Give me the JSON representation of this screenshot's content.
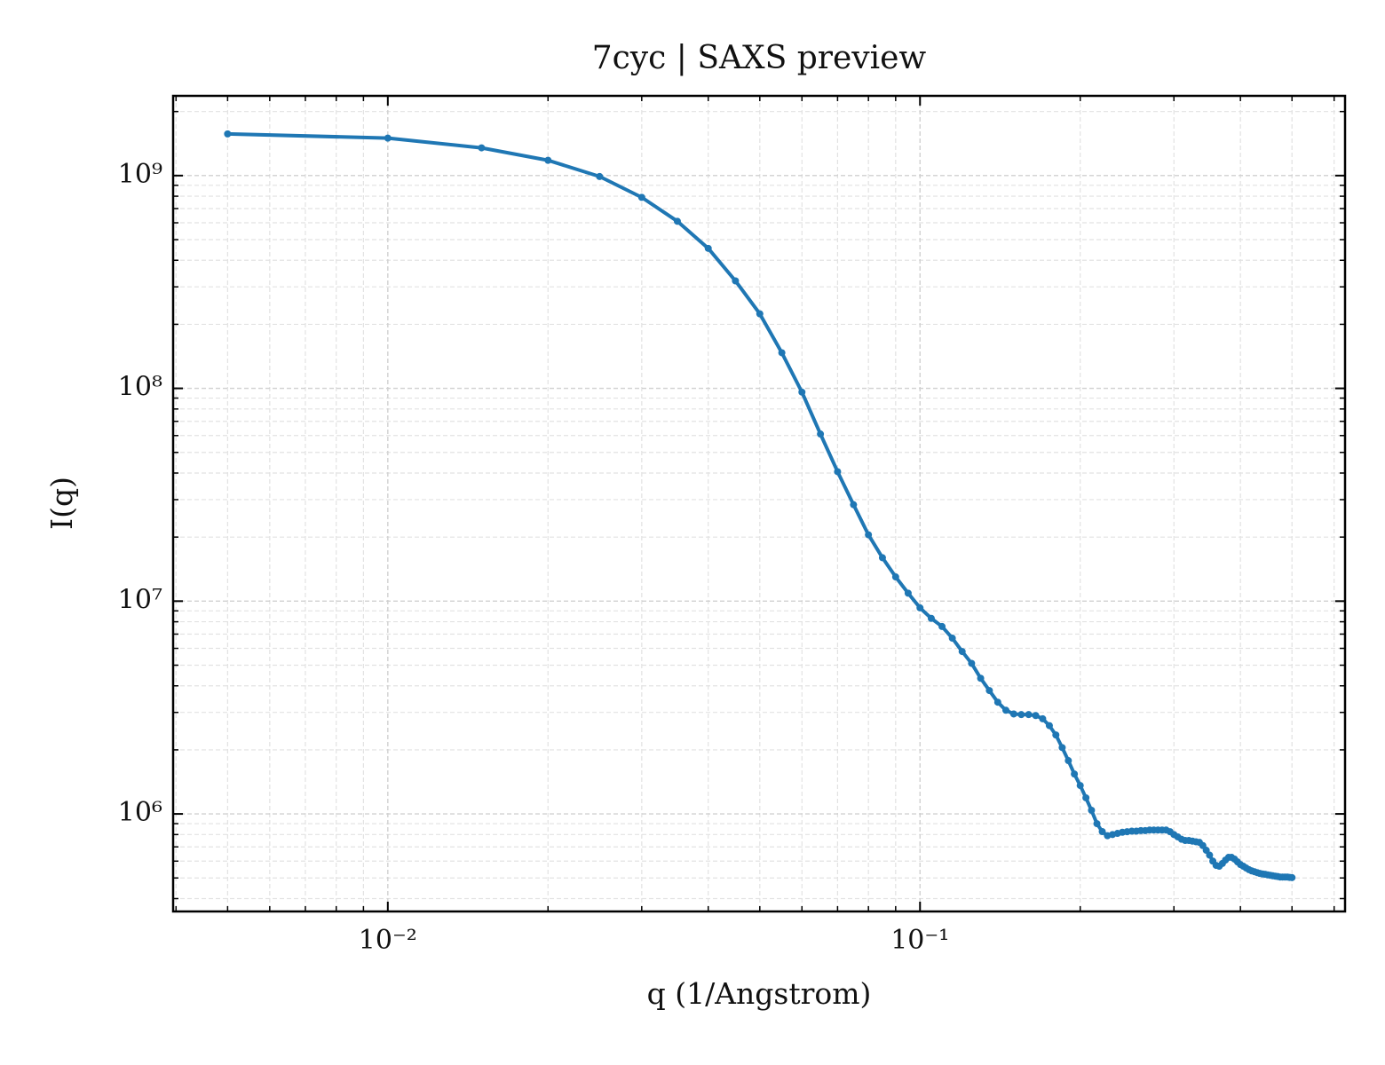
{
  "chart_data": {
    "type": "line",
    "title": "7cyc | SAXS preview",
    "x_label": "q (1/Angstrom)",
    "y_label": "I(q)",
    "x_scale": "log",
    "y_scale": "log",
    "grid": true,
    "minor_grid": true,
    "xlim": [
      0.00395,
      0.629
    ],
    "ylim": [
      348000,
      2370000000
    ],
    "xticks": [
      {
        "value": 0.01,
        "label": "10⁻²"
      },
      {
        "value": 0.1,
        "label": "10⁻¹"
      }
    ],
    "yticks": [
      {
        "value": 1000000,
        "label": "10⁶"
      },
      {
        "value": 10000000,
        "label": "10⁷"
      },
      {
        "value": 100000000,
        "label": "10⁸"
      },
      {
        "value": 1000000000,
        "label": "10⁹"
      }
    ],
    "xminorticks": [
      0.004,
      0.005,
      0.006,
      0.007,
      0.008,
      0.009,
      0.02,
      0.03,
      0.04,
      0.05,
      0.06,
      0.07,
      0.08,
      0.09,
      0.2,
      0.3,
      0.4,
      0.5,
      0.6
    ],
    "yminorticks": [
      400000,
      500000,
      600000,
      700000,
      800000,
      900000,
      2000000,
      3000000,
      4000000,
      5000000,
      6000000,
      7000000,
      8000000,
      9000000,
      20000000,
      30000000,
      40000000,
      50000000,
      60000000,
      70000000,
      80000000,
      90000000,
      200000000,
      300000000,
      400000000,
      500000000,
      600000000,
      700000000,
      800000000,
      900000000,
      2000000000
    ],
    "x": [
      0.005,
      0.01,
      0.015,
      0.02,
      0.025,
      0.03,
      0.035,
      0.04,
      0.045,
      0.05,
      0.055,
      0.06,
      0.065,
      0.07,
      0.075,
      0.08,
      0.085,
      0.09,
      0.095,
      0.1,
      0.105,
      0.11,
      0.115,
      0.12,
      0.125,
      0.13,
      0.135,
      0.14,
      0.145,
      0.15,
      0.155,
      0.16,
      0.165,
      0.17,
      0.175,
      0.18,
      0.185,
      0.19,
      0.195,
      0.2,
      0.205,
      0.21,
      0.215,
      0.22,
      0.225,
      0.23,
      0.235,
      0.24,
      0.245,
      0.25,
      0.255,
      0.26,
      0.265,
      0.27,
      0.275,
      0.28,
      0.285,
      0.29,
      0.295,
      0.3,
      0.305,
      0.31,
      0.315,
      0.32,
      0.325,
      0.33,
      0.335,
      0.34,
      0.345,
      0.35,
      0.355,
      0.36,
      0.365,
      0.37,
      0.375,
      0.38,
      0.385,
      0.39,
      0.395,
      0.4,
      0.405,
      0.41,
      0.415,
      0.42,
      0.425,
      0.43,
      0.435,
      0.44,
      0.445,
      0.45,
      0.455,
      0.46,
      0.465,
      0.47,
      0.475,
      0.48,
      0.485,
      0.49,
      0.495,
      0.5
    ],
    "series": [
      {
        "name": "I(q)",
        "color": "#1f77b4",
        "values": [
          1570000000,
          1500000000,
          1350000000,
          1180000000,
          990000000,
          790000000,
          610000000,
          455000000,
          320000000,
          224000000,
          147000000,
          96000000,
          61000000,
          40600000,
          28400000,
          20500000,
          16000000,
          13000000,
          10900000,
          9300000,
          8300000,
          7600000,
          6700000,
          5800000,
          5100000,
          4340000,
          3800000,
          3350000,
          3070000,
          2950000,
          2930000,
          2930000,
          2900000,
          2800000,
          2600000,
          2350000,
          2050000,
          1780000,
          1540000,
          1360000,
          1190000,
          1040000,
          900000,
          826000,
          790000,
          800000,
          810000,
          820000,
          825000,
          830000,
          830000,
          835000,
          835000,
          840000,
          840000,
          840000,
          840000,
          840000,
          825000,
          800000,
          780000,
          760000,
          750000,
          750000,
          745000,
          740000,
          735000,
          710000,
          675000,
          640000,
          600000,
          573000,
          568000,
          585000,
          607000,
          625000,
          625000,
          613000,
          595000,
          578000,
          568000,
          557000,
          547000,
          540000,
          535000,
          530000,
          525000,
          522000,
          520000,
          517000,
          515000,
          512000,
          510000,
          508000,
          505000,
          505000,
          505000,
          505000,
          503000,
          502000
        ]
      }
    ]
  }
}
